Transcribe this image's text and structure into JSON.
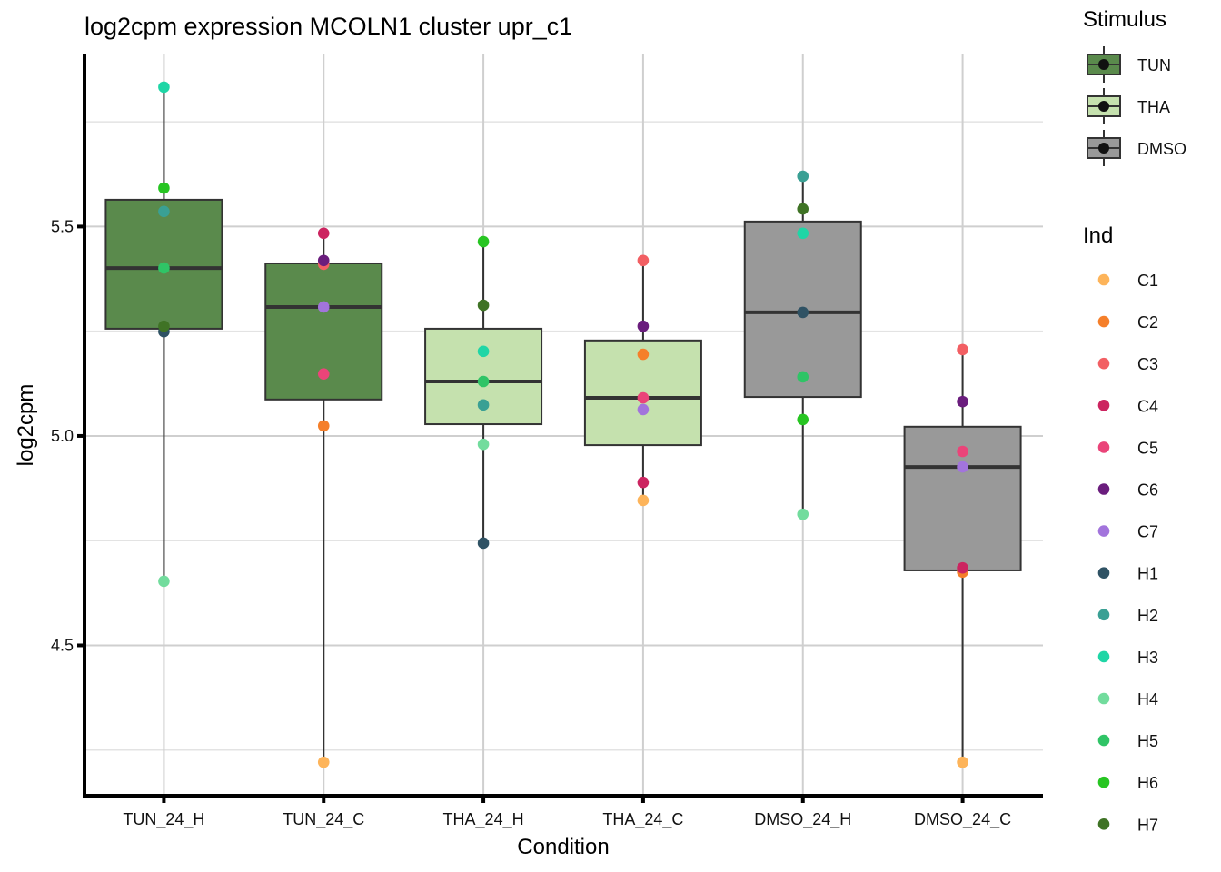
{
  "chart_data": {
    "type": "boxplot",
    "title": "log2cpm expression MCOLN1 cluster upr_c1",
    "xlabel": "Condition",
    "ylabel": "log2cpm",
    "ylim": [
      4.141,
      5.913
    ],
    "yticks": [
      4.5,
      5.0,
      5.5
    ],
    "ytick_labels": [
      "4.5",
      "5.0",
      "5.5"
    ],
    "y_minor_grid": [
      4.25,
      4.75,
      5.25,
      5.75
    ],
    "grid": true,
    "categories": [
      "TUN_24_H",
      "TUN_24_C",
      "THA_24_H",
      "THA_24_C",
      "DMSO_24_H",
      "DMSO_24_C"
    ],
    "boxes": [
      {
        "condition": "TUN_24_H",
        "stimulus": "TUN",
        "lower_whisker": 4.653,
        "q1": 5.256,
        "median": 5.401,
        "q3": 5.564,
        "upper_whisker": 5.833
      },
      {
        "condition": "TUN_24_C",
        "stimulus": "TUN",
        "lower_whisker": 4.221,
        "q1": 5.087,
        "median": 5.308,
        "q3": 5.412,
        "upper_whisker": 5.484
      },
      {
        "condition": "THA_24_H",
        "stimulus": "THA",
        "lower_whisker": 4.744,
        "q1": 5.028,
        "median": 5.13,
        "q3": 5.256,
        "upper_whisker": 5.464
      },
      {
        "condition": "THA_24_C",
        "stimulus": "THA",
        "lower_whisker": 4.846,
        "q1": 4.978,
        "median": 5.091,
        "q3": 5.228,
        "upper_whisker": 5.419
      },
      {
        "condition": "DMSO_24_H",
        "stimulus": "DMSO",
        "lower_whisker": 4.813,
        "q1": 5.093,
        "median": 5.295,
        "q3": 5.512,
        "upper_whisker": 5.62
      },
      {
        "condition": "DMSO_24_C",
        "stimulus": "DMSO",
        "lower_whisker": 4.221,
        "q1": 4.679,
        "median": 4.926,
        "q3": 5.022,
        "upper_whisker": 5.206
      }
    ],
    "points": [
      {
        "condition": "TUN_24_H",
        "ind": "H3",
        "value": 5.833
      },
      {
        "condition": "TUN_24_H",
        "ind": "H6",
        "value": 5.592
      },
      {
        "condition": "TUN_24_H",
        "ind": "H2",
        "value": 5.536
      },
      {
        "condition": "TUN_24_H",
        "ind": "H5",
        "value": 5.401
      },
      {
        "condition": "TUN_24_H",
        "ind": "H1",
        "value": 5.249
      },
      {
        "condition": "TUN_24_H",
        "ind": "H7",
        "value": 5.262
      },
      {
        "condition": "TUN_24_H",
        "ind": "H4",
        "value": 4.653
      },
      {
        "condition": "TUN_24_C",
        "ind": "C4",
        "value": 5.484
      },
      {
        "condition": "TUN_24_C",
        "ind": "C3",
        "value": 5.41
      },
      {
        "condition": "TUN_24_C",
        "ind": "C6",
        "value": 5.419
      },
      {
        "condition": "TUN_24_C",
        "ind": "C7",
        "value": 5.308
      },
      {
        "condition": "TUN_24_C",
        "ind": "C5",
        "value": 5.148
      },
      {
        "condition": "TUN_24_C",
        "ind": "C2",
        "value": 5.024
      },
      {
        "condition": "TUN_24_C",
        "ind": "C1",
        "value": 4.221
      },
      {
        "condition": "THA_24_H",
        "ind": "H6",
        "value": 5.464
      },
      {
        "condition": "THA_24_H",
        "ind": "H7",
        "value": 5.312
      },
      {
        "condition": "THA_24_H",
        "ind": "H3",
        "value": 5.202
      },
      {
        "condition": "THA_24_H",
        "ind": "H5",
        "value": 5.13
      },
      {
        "condition": "THA_24_H",
        "ind": "H2",
        "value": 5.074
      },
      {
        "condition": "THA_24_H",
        "ind": "H4",
        "value": 4.98
      },
      {
        "condition": "THA_24_H",
        "ind": "H1",
        "value": 4.744
      },
      {
        "condition": "THA_24_C",
        "ind": "C3",
        "value": 5.419
      },
      {
        "condition": "THA_24_C",
        "ind": "C6",
        "value": 5.262
      },
      {
        "condition": "THA_24_C",
        "ind": "C2",
        "value": 5.195
      },
      {
        "condition": "THA_24_C",
        "ind": "C7",
        "value": 5.063
      },
      {
        "condition": "THA_24_C",
        "ind": "C5",
        "value": 5.091
      },
      {
        "condition": "THA_24_C",
        "ind": "C1",
        "value": 4.846
      },
      {
        "condition": "THA_24_C",
        "ind": "C4",
        "value": 4.889
      },
      {
        "condition": "DMSO_24_H",
        "ind": "H2",
        "value": 5.62
      },
      {
        "condition": "DMSO_24_H",
        "ind": "H7",
        "value": 5.542
      },
      {
        "condition": "DMSO_24_H",
        "ind": "H3",
        "value": 5.484
      },
      {
        "condition": "DMSO_24_H",
        "ind": "H1",
        "value": 5.295
      },
      {
        "condition": "DMSO_24_H",
        "ind": "H5",
        "value": 5.141
      },
      {
        "condition": "DMSO_24_H",
        "ind": "H6",
        "value": 5.039
      },
      {
        "condition": "DMSO_24_H",
        "ind": "H4",
        "value": 4.813
      },
      {
        "condition": "DMSO_24_C",
        "ind": "C3",
        "value": 5.206
      },
      {
        "condition": "DMSO_24_C",
        "ind": "C6",
        "value": 5.082
      },
      {
        "condition": "DMSO_24_C",
        "ind": "C5",
        "value": 4.963
      },
      {
        "condition": "DMSO_24_C",
        "ind": "C7",
        "value": 4.926
      },
      {
        "condition": "DMSO_24_C",
        "ind": "C2",
        "value": 4.675
      },
      {
        "condition": "DMSO_24_C",
        "ind": "C4",
        "value": 4.685
      },
      {
        "condition": "DMSO_24_C",
        "ind": "C1",
        "value": 4.221
      }
    ],
    "legend": {
      "placement": "right",
      "stimulus": {
        "title": "Stimulus",
        "entries": [
          {
            "label": "TUN",
            "color": "#5a8a4c"
          },
          {
            "label": "THA",
            "color": "#c5e1ae"
          },
          {
            "label": "DMSO",
            "color": "#999999"
          }
        ]
      },
      "ind": {
        "title": "Ind",
        "entries": [
          {
            "label": "C1",
            "color": "#fdb45a"
          },
          {
            "label": "C2",
            "color": "#f57f2a"
          },
          {
            "label": "C3",
            "color": "#f25f63"
          },
          {
            "label": "C4",
            "color": "#cc2460"
          },
          {
            "label": "C5",
            "color": "#ea4479"
          },
          {
            "label": "C6",
            "color": "#6a1d7d"
          },
          {
            "label": "C7",
            "color": "#a274dc"
          },
          {
            "label": "H1",
            "color": "#2f5264"
          },
          {
            "label": "H2",
            "color": "#3aa094"
          },
          {
            "label": "H3",
            "color": "#1fd6a6"
          },
          {
            "label": "H4",
            "color": "#72dc9d"
          },
          {
            "label": "H5",
            "color": "#2fc466"
          },
          {
            "label": "H6",
            "color": "#27c522"
          },
          {
            "label": "H7",
            "color": "#3f7325"
          }
        ]
      }
    }
  }
}
